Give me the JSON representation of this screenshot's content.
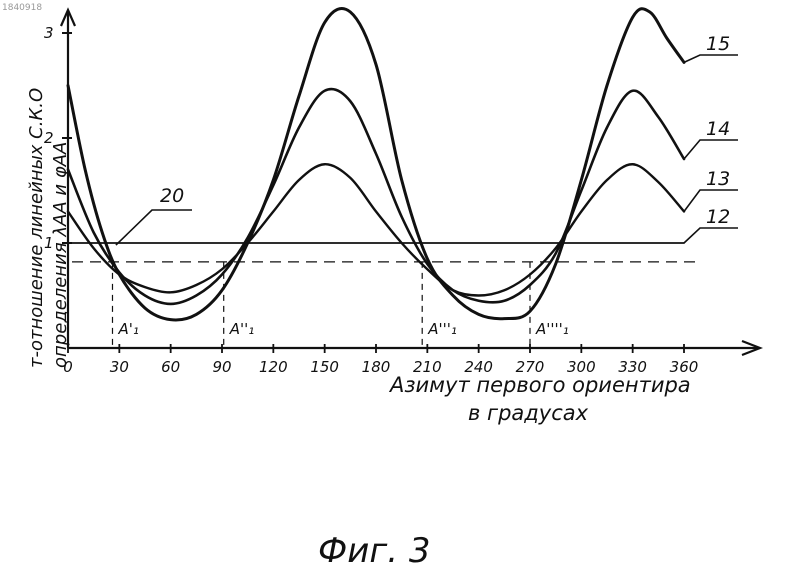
{
  "document_number": "1840918",
  "caption": "Фиг. 3",
  "chart_data": {
    "type": "line",
    "title": "",
    "xlabel_line1": "Азимут первого ориентира",
    "xlabel_line2": "в градусах",
    "ylabel_line1": "т-отношение линейных С.К.О",
    "ylabel_line2": "определения λАА и φАА",
    "x_ticks": [
      0,
      30,
      60,
      90,
      120,
      150,
      180,
      210,
      240,
      270,
      300,
      330,
      360
    ],
    "x_tick_labels": [
      "0",
      "30",
      "60",
      "90",
      "120",
      "150",
      "180",
      "210",
      "240",
      "270",
      "300",
      "330",
      "360"
    ],
    "y_ticks": [
      1,
      2,
      3
    ],
    "y_tick_labels": [
      "1",
      "2",
      "3"
    ],
    "xlim": [
      0,
      380
    ],
    "ylim": [
      0,
      3.3
    ],
    "grid": false,
    "reference_level": 0.82,
    "series": [
      {
        "name": "12",
        "x": [
          0,
          360
        ],
        "y": [
          1.0,
          1.0
        ]
      },
      {
        "name": "13",
        "x": [
          0,
          15,
          30,
          45,
          60,
          75,
          90,
          105,
          120,
          135,
          150,
          165,
          180,
          195,
          210,
          225,
          240,
          255,
          270,
          285,
          300,
          315,
          330,
          345,
          360
        ],
        "y": [
          1.3,
          0.95,
          0.7,
          0.58,
          0.53,
          0.6,
          0.75,
          1.0,
          1.3,
          1.6,
          1.75,
          1.62,
          1.3,
          1.0,
          0.75,
          0.55,
          0.5,
          0.55,
          0.7,
          0.95,
          1.3,
          1.6,
          1.75,
          1.58,
          1.3
        ]
      },
      {
        "name": "14",
        "x": [
          0,
          15,
          30,
          45,
          60,
          75,
          90,
          105,
          120,
          135,
          150,
          165,
          180,
          195,
          210,
          225,
          240,
          255,
          270,
          285,
          300,
          315,
          330,
          345,
          360
        ],
        "y": [
          1.7,
          1.1,
          0.72,
          0.5,
          0.42,
          0.5,
          0.7,
          1.05,
          1.55,
          2.1,
          2.45,
          2.35,
          1.85,
          1.25,
          0.8,
          0.55,
          0.45,
          0.45,
          0.6,
          0.9,
          1.5,
          2.1,
          2.45,
          2.2,
          1.8
        ]
      },
      {
        "name": "15",
        "x": [
          0,
          10,
          20,
          30,
          45,
          60,
          75,
          90,
          105,
          120,
          135,
          150,
          165,
          180,
          195,
          210,
          225,
          240,
          255,
          270,
          285,
          300,
          315,
          330,
          340,
          350,
          360
        ],
        "y": [
          2.5,
          1.7,
          1.1,
          0.7,
          0.38,
          0.27,
          0.32,
          0.55,
          1.0,
          1.6,
          2.4,
          3.1,
          3.2,
          2.7,
          1.6,
          0.85,
          0.5,
          0.32,
          0.28,
          0.35,
          0.8,
          1.6,
          2.5,
          3.15,
          3.2,
          2.95,
          2.72
        ]
      }
    ],
    "annotations": [
      {
        "text": "20",
        "x": 50,
        "y": 1.35
      },
      {
        "text": "A'₁",
        "x": 26,
        "y": 0.82
      },
      {
        "text": "A''₁",
        "x": 91,
        "y": 0.82
      },
      {
        "text": "A'''₁",
        "x": 207,
        "y": 0.82
      },
      {
        "text": "A''''₁",
        "x": 270,
        "y": 0.82
      }
    ]
  }
}
